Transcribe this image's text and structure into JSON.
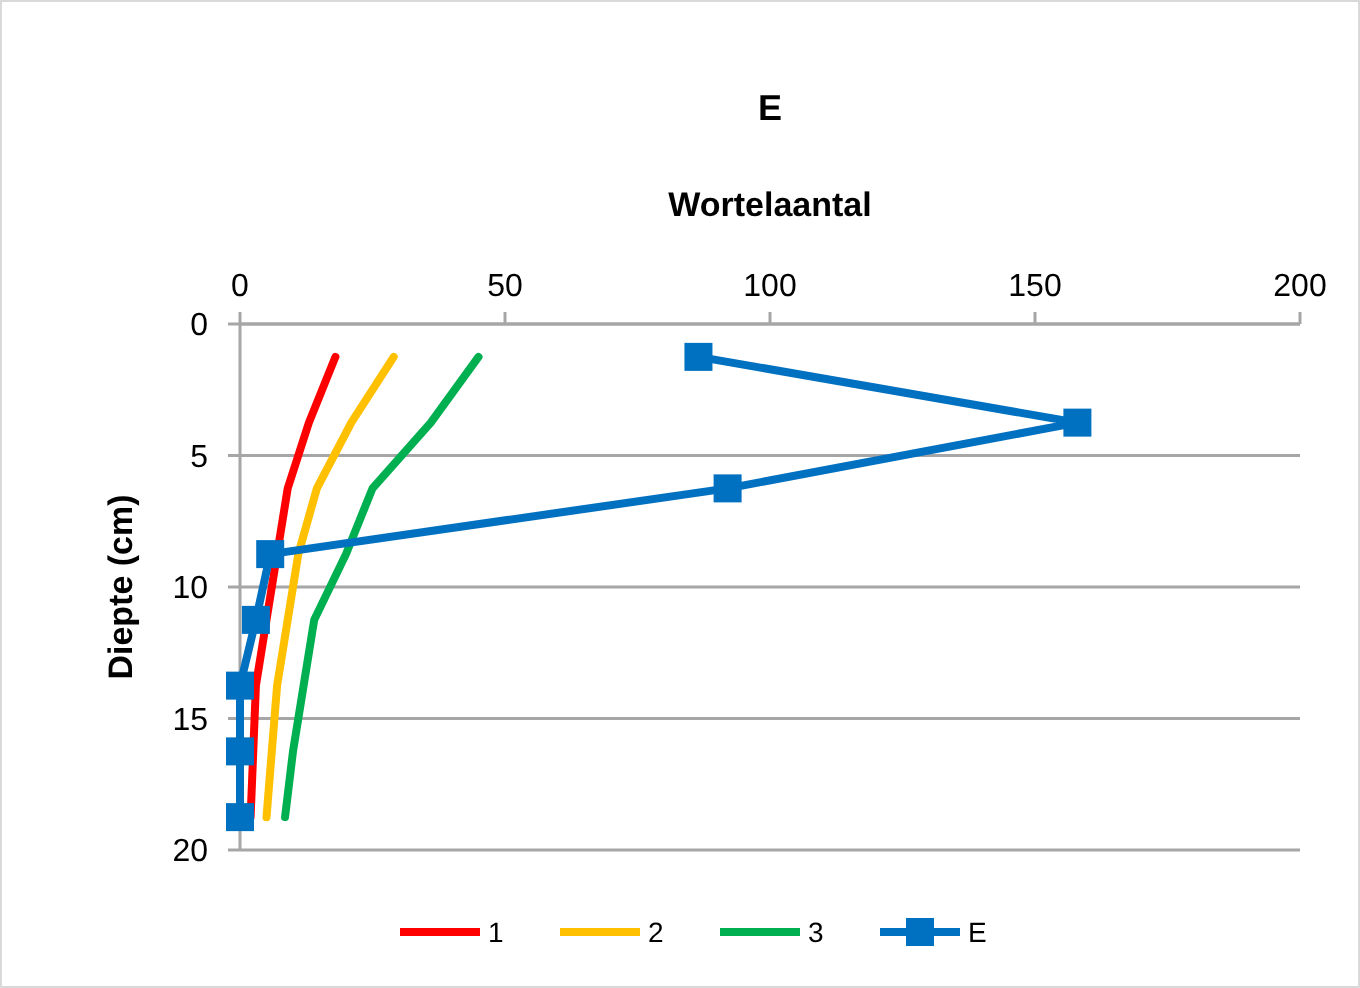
{
  "chart_data": {
    "type": "line",
    "title": "E",
    "xlabel": "Wortelaantal",
    "ylabel": "Diepte (cm)",
    "xlim": [
      0,
      200
    ],
    "xticks": [
      0,
      50,
      100,
      150,
      200
    ],
    "ylim": [
      20,
      0
    ],
    "yticks": [
      0,
      5,
      10,
      15,
      20
    ],
    "grid": "y",
    "legend": "bottom",
    "line_style": "solid",
    "series": [
      {
        "name": "1",
        "color": "#ff0000",
        "marker": "none",
        "x": [
          18,
          13,
          9,
          null,
          null,
          3,
          2.5,
          2
        ],
        "values": [
          1.25,
          3.75,
          6.25,
          null,
          null,
          13.75,
          16.25,
          18.75
        ]
      },
      {
        "name": "2",
        "color": "#ffc000",
        "marker": "none",
        "x": [
          29,
          21,
          14.5,
          11,
          9,
          7,
          6,
          5
        ],
        "values": [
          1.25,
          3.75,
          6.25,
          8.75,
          11.25,
          13.75,
          16.25,
          18.75
        ]
      },
      {
        "name": "3",
        "color": "#00b050",
        "marker": "none",
        "x": [
          45,
          36,
          25,
          20,
          14,
          12,
          10,
          8.5
        ],
        "values": [
          1.25,
          3.75,
          6.25,
          8.75,
          11.25,
          13.75,
          16.25,
          18.75
        ]
      },
      {
        "name": "E",
        "color": "#0070c0",
        "marker": "square",
        "x": [
          86.5,
          158,
          92,
          5.7,
          3,
          0,
          0,
          0
        ],
        "values": [
          1.25,
          3.75,
          6.25,
          8.75,
          11.25,
          13.75,
          16.25,
          18.75
        ]
      }
    ]
  }
}
